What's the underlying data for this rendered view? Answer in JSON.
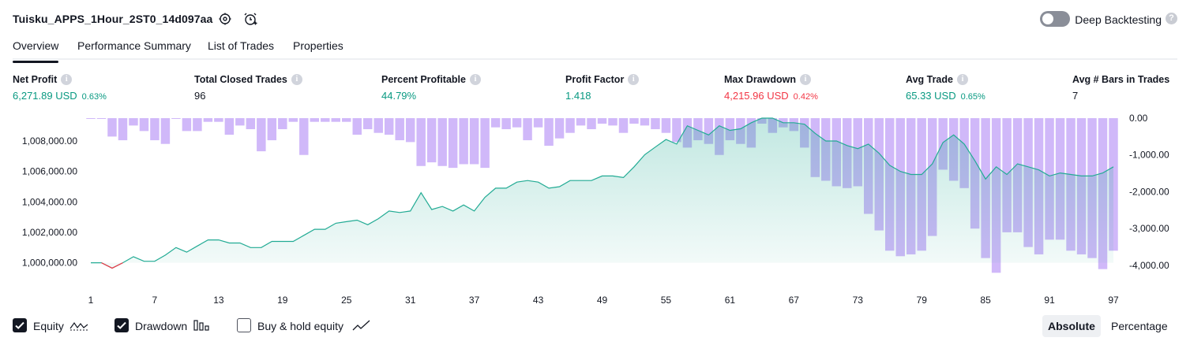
{
  "header": {
    "title": "Tuisku_APPS_1Hour_2ST0_14d097aa",
    "deep_backtesting_label": "Deep Backtesting",
    "deep_backtesting_enabled": false
  },
  "tabs": [
    {
      "label": "Overview",
      "active": true
    },
    {
      "label": "Performance Summary",
      "active": false
    },
    {
      "label": "List of Trades",
      "active": false
    },
    {
      "label": "Properties",
      "active": false
    }
  ],
  "stats": [
    {
      "label": "Net Profit",
      "value": "6,271.89 USD",
      "pct": "0.63%",
      "color": "#089981"
    },
    {
      "label": "Total Closed Trades",
      "value": "96",
      "pct": "",
      "color": "#131722"
    },
    {
      "label": "Percent Profitable",
      "value": "44.79%",
      "pct": "",
      "color": "#089981"
    },
    {
      "label": "Profit Factor",
      "value": "1.418",
      "pct": "",
      "color": "#089981"
    },
    {
      "label": "Max Drawdown",
      "value": "4,215.96 USD",
      "pct": "0.42%",
      "color": "#f23645"
    },
    {
      "label": "Avg Trade",
      "value": "65.33 USD",
      "pct": "0.65%",
      "color": "#089981"
    },
    {
      "label": "Avg # Bars in Trades",
      "value": "7",
      "pct": "",
      "color": "#131722"
    }
  ],
  "legend": {
    "equity_label": "Equity",
    "equity_checked": true,
    "drawdown_label": "Drawdown",
    "drawdown_checked": true,
    "buyhold_label": "Buy & hold equity",
    "buyhold_checked": false
  },
  "mode": {
    "absolute": "Absolute",
    "percentage": "Percentage",
    "selected": "Absolute"
  },
  "colors": {
    "equity_line": "#22ab94",
    "equity_line_negative": "#f23645",
    "drawdown_bar": "#b38cf5",
    "accent_green": "#089981",
    "accent_red": "#f23645"
  },
  "chart_data": {
    "type": "area",
    "x_ticks": [
      "1",
      "7",
      "13",
      "19",
      "25",
      "31",
      "37",
      "43",
      "49",
      "55",
      "61",
      "67",
      "73",
      "79",
      "85",
      "91",
      "97"
    ],
    "left_axis": {
      "ticks": [
        "1,000,000.00",
        "1,002,000.00",
        "1,004,000.00",
        "1,006,000.00",
        "1,008,000.00"
      ],
      "range": [
        999100,
        1009500
      ]
    },
    "right_axis": {
      "ticks": [
        "0.00",
        "-1,000.00",
        "-2,000.00",
        "-3,000.00",
        "-4,000.00"
      ],
      "range": [
        -4300,
        0
      ]
    },
    "series": [
      {
        "name": "Equity",
        "axis": "left",
        "x": [
          1,
          2,
          3,
          4,
          5,
          6,
          7,
          8,
          9,
          10,
          11,
          12,
          13,
          14,
          15,
          16,
          17,
          18,
          19,
          20,
          21,
          22,
          23,
          24,
          25,
          26,
          27,
          28,
          29,
          30,
          31,
          32,
          33,
          34,
          35,
          36,
          37,
          38,
          39,
          40,
          41,
          42,
          43,
          44,
          45,
          46,
          47,
          48,
          49,
          50,
          51,
          52,
          53,
          54,
          55,
          56,
          57,
          58,
          59,
          60,
          61,
          62,
          63,
          64,
          65,
          66,
          67,
          68,
          69,
          70,
          71,
          72,
          73,
          74,
          75,
          76,
          77,
          78,
          79,
          80,
          81,
          82,
          83,
          84,
          85,
          86,
          87,
          88,
          89,
          90,
          91,
          92,
          93,
          94,
          95,
          96,
          97
        ],
        "values": [
          1000000,
          1000000,
          999650,
          1000000,
          1000400,
          1000100,
          1000100,
          1000500,
          1001000,
          1000700,
          1001100,
          1001500,
          1001500,
          1001300,
          1001300,
          1001000,
          1001000,
          1001400,
          1001400,
          1001400,
          1001800,
          1002200,
          1002200,
          1002600,
          1002700,
          1002800,
          1002500,
          1002900,
          1003400,
          1003300,
          1003400,
          1004600,
          1003500,
          1003700,
          1003400,
          1003800,
          1003400,
          1004300,
          1004900,
          1004900,
          1005300,
          1005400,
          1005300,
          1004900,
          1005000,
          1005400,
          1005400,
          1005400,
          1005700,
          1005700,
          1005600,
          1006300,
          1007100,
          1007600,
          1008100,
          1007800,
          1009000,
          1008700,
          1008400,
          1009000,
          1008700,
          1008800,
          1009200,
          1009500,
          1009500,
          1009200,
          1009200,
          1009100,
          1008500,
          1008000,
          1008000,
          1007700,
          1007500,
          1007800,
          1007200,
          1006400,
          1006000,
          1005800,
          1005800,
          1006500,
          1007900,
          1008400,
          1007800,
          1006700,
          1005500,
          1006300,
          1005800,
          1006500,
          1006300,
          1006100,
          1005700,
          1005900,
          1005800,
          1005700,
          1005700,
          1005900,
          1006300
        ]
      },
      {
        "name": "Drawdown",
        "axis": "right",
        "x": [
          1,
          2,
          3,
          4,
          5,
          6,
          7,
          8,
          9,
          10,
          11,
          12,
          13,
          14,
          15,
          16,
          17,
          18,
          19,
          20,
          21,
          22,
          23,
          24,
          25,
          26,
          27,
          28,
          29,
          30,
          31,
          32,
          33,
          34,
          35,
          36,
          37,
          38,
          39,
          40,
          41,
          42,
          43,
          44,
          45,
          46,
          47,
          48,
          49,
          50,
          51,
          52,
          53,
          54,
          55,
          56,
          57,
          58,
          59,
          60,
          61,
          62,
          63,
          64,
          65,
          66,
          67,
          68,
          69,
          70,
          71,
          72,
          73,
          74,
          75,
          76,
          77,
          78,
          79,
          80,
          81,
          82,
          83,
          84,
          85,
          86,
          87,
          88,
          89,
          90,
          91,
          92,
          93,
          94,
          95,
          96,
          97
        ],
        "values": [
          0,
          0,
          -500,
          -600,
          -200,
          -350,
          -600,
          -700,
          0,
          -350,
          -350,
          -100,
          -100,
          -450,
          -200,
          -300,
          -900,
          -600,
          -300,
          -100,
          -1000,
          -100,
          -100,
          -100,
          -100,
          -450,
          -300,
          -400,
          -450,
          -600,
          -650,
          -1300,
          -1200,
          -1300,
          -1350,
          -1250,
          -1250,
          -1350,
          -250,
          -300,
          -250,
          -600,
          -250,
          -750,
          -550,
          -400,
          -200,
          -300,
          -150,
          -200,
          -400,
          -150,
          -200,
          -300,
          -400,
          -650,
          -800,
          -600,
          -700,
          -1000,
          -600,
          -700,
          -800,
          -150,
          -400,
          -250,
          -350,
          -800,
          -1600,
          -1700,
          -1850,
          -1900,
          -1850,
          -2600,
          -3050,
          -3600,
          -3750,
          -3700,
          -3600,
          -3200,
          -1400,
          -1700,
          -1900,
          -3000,
          -3800,
          -4200,
          -3100,
          -3100,
          -3500,
          -3700,
          -3300,
          -3300,
          -3600,
          -3700,
          -3800,
          -4100,
          -3600
        ]
      }
    ],
    "grid": false,
    "legend": "bottom-left"
  }
}
